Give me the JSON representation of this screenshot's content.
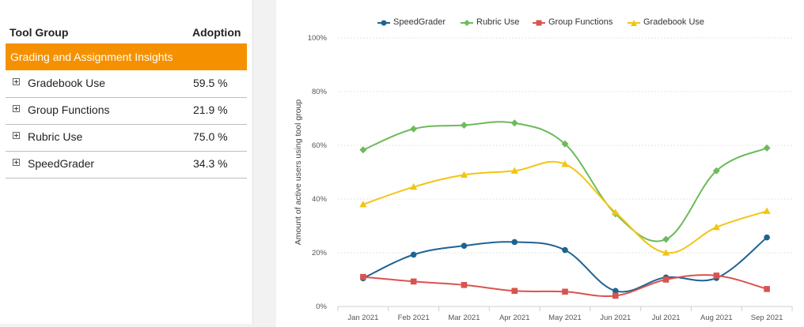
{
  "table": {
    "header_tool": "Tool Group",
    "header_adoption": "Adoption",
    "group_label": "Grading and Assignment Insights",
    "rows": [
      {
        "label": "Gradebook Use",
        "value": "59.5 %"
      },
      {
        "label": "Group Functions",
        "value": "21.9 %"
      },
      {
        "label": "Rubric Use",
        "value": "75.0 %"
      },
      {
        "label": "SpeedGrader",
        "value": "34.3 %"
      }
    ]
  },
  "colors": {
    "accent": "#f59100",
    "speedgrader": "#1f6391",
    "rubric": "#6dba5a",
    "group_functions": "#d9534f",
    "gradebook": "#f2c511"
  },
  "chart_data": {
    "type": "line",
    "title": "",
    "xlabel": "",
    "ylabel": "Amount of active users using tool group",
    "ylim": [
      0,
      100
    ],
    "yticks": [
      0,
      20,
      40,
      60,
      80,
      100
    ],
    "ytick_labels": [
      "0%",
      "20%",
      "40%",
      "60%",
      "80%",
      "100%"
    ],
    "categories": [
      "Jan 2021",
      "Feb 2021",
      "Mar 2021",
      "Apr 2021",
      "May 2021",
      "Jun 2021",
      "Jul 2021",
      "Aug 2021",
      "Sep 2021"
    ],
    "legend_position": "top",
    "series": [
      {
        "name": "SpeedGrader",
        "marker": "circle",
        "color": "#1f6391",
        "values": [
          10.5,
          19.3,
          22.6,
          24.0,
          21.0,
          5.8,
          10.8,
          10.6,
          25.7
        ]
      },
      {
        "name": "Rubric Use",
        "marker": "diamond",
        "color": "#6dba5a",
        "values": [
          58.3,
          66.1,
          67.5,
          68.3,
          60.5,
          34.5,
          25.0,
          50.5,
          59.0
        ]
      },
      {
        "name": "Group Functions",
        "marker": "square",
        "color": "#d9534f",
        "values": [
          11.0,
          9.3,
          8.0,
          5.8,
          5.5,
          4.0,
          10.0,
          11.5,
          6.5
        ]
      },
      {
        "name": "Gradebook Use",
        "marker": "triangle",
        "color": "#f2c511",
        "values": [
          38.0,
          44.5,
          49.0,
          50.5,
          53.0,
          35.0,
          20.0,
          29.5,
          35.5
        ]
      }
    ]
  }
}
